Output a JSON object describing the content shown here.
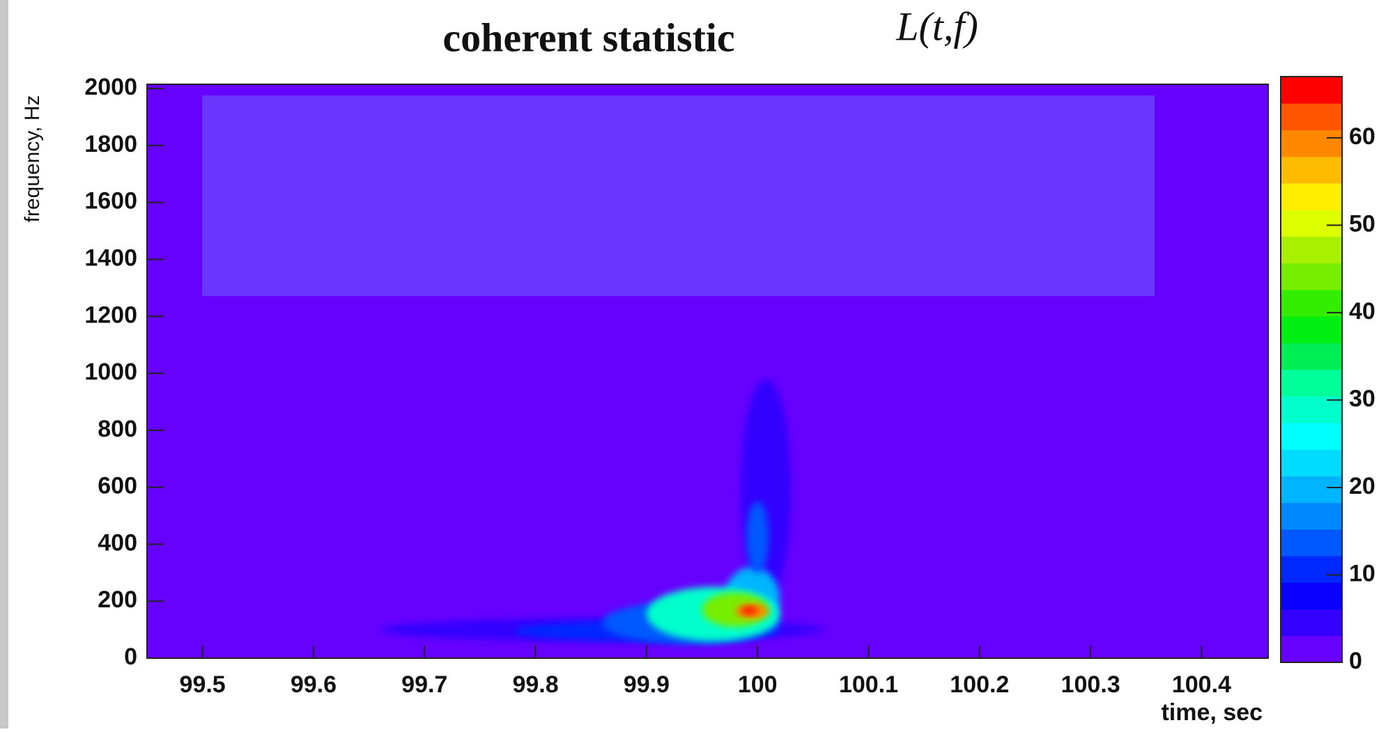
{
  "chart_data": {
    "type": "heatmap",
    "title": "coherent statistic",
    "subtitle": "L(t,f)",
    "x_label": "time, sec",
    "y_label": "frequency, Hz",
    "xlim": [
      99.45,
      100.46
    ],
    "ylim": [
      0,
      2015
    ],
    "xticks": [
      99.5,
      99.6,
      99.7,
      99.8,
      99.9,
      100,
      100.1,
      100.2,
      100.3,
      100.4
    ],
    "yticks": [
      0,
      200,
      400,
      600,
      800,
      1000,
      1200,
      1400,
      1600,
      1800,
      2000
    ],
    "zlim": [
      0,
      67
    ],
    "zticks": [
      0,
      10,
      20,
      30,
      40,
      50,
      60
    ],
    "colors": [
      "#6600ff",
      "#3300ff",
      "#0a00ff",
      "#0028ff",
      "#0058ff",
      "#0088ff",
      "#00b4ff",
      "#00dcff",
      "#00ffff",
      "#00ffcc",
      "#00ff99",
      "#00ee55",
      "#00ee11",
      "#33ee00",
      "#77ee00",
      "#aaee00",
      "#ddff00",
      "#ffee00",
      "#ffbb00",
      "#ff8800",
      "#ff5500",
      "#ff0000"
    ],
    "blobs": {
      "x0": [
        99.66,
        99.985,
        99.78,
        99.86,
        99.97,
        99.99,
        99.9,
        99.95,
        99.98,
        99.985
      ],
      "x1": [
        100.06,
        100.03,
        100.02,
        100.02,
        100.02,
        100.01,
        100.02,
        100.01,
        100.01,
        100.0
      ],
      "y0": [
        60,
        200,
        60,
        50,
        100,
        300,
        60,
        110,
        140,
        155
      ],
      "y1": [
        140,
        980,
        130,
        200,
        320,
        550,
        250,
        230,
        190,
        180
      ],
      "z": [
        5,
        5,
        10,
        15,
        20,
        15,
        30,
        45,
        60,
        66
      ]
    }
  }
}
